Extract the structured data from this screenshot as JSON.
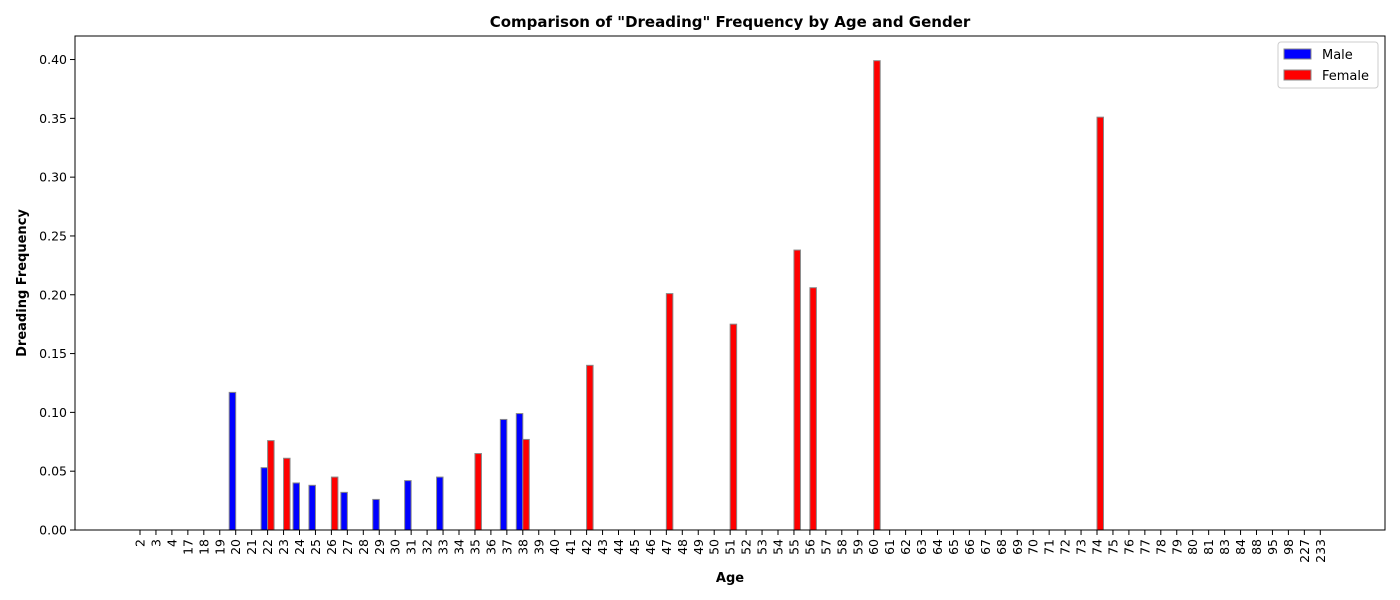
{
  "chart_data": {
    "type": "bar",
    "title": "Comparison of \"Dreading\" Frequency by Age and Gender",
    "xlabel": "Age",
    "ylabel": "Dreading Frequency",
    "ylim": [
      0,
      0.42
    ],
    "yticks": [
      "0.00",
      "0.05",
      "0.10",
      "0.15",
      "0.20",
      "0.25",
      "0.30",
      "0.35",
      "0.40"
    ],
    "legend_position": "top-right",
    "categories": [
      "2",
      "3",
      "4",
      "17",
      "18",
      "19",
      "20",
      "21",
      "22",
      "23",
      "24",
      "25",
      "26",
      "27",
      "28",
      "29",
      "30",
      "31",
      "32",
      "33",
      "34",
      "35",
      "36",
      "37",
      "38",
      "39",
      "40",
      "41",
      "42",
      "43",
      "44",
      "45",
      "46",
      "47",
      "48",
      "49",
      "50",
      "51",
      "52",
      "53",
      "54",
      "55",
      "56",
      "57",
      "58",
      "59",
      "60",
      "61",
      "62",
      "63",
      "64",
      "65",
      "66",
      "67",
      "68",
      "69",
      "70",
      "71",
      "72",
      "73",
      "74",
      "75",
      "76",
      "77",
      "78",
      "79",
      "80",
      "81",
      "83",
      "84",
      "88",
      "95",
      "98",
      "227",
      "233"
    ],
    "series": [
      {
        "name": "Male",
        "color": "#0000ff",
        "values": [
          0,
          0,
          0,
          0,
          0,
          0,
          0.117,
          0,
          0.053,
          0,
          0.04,
          0.038,
          0,
          0.032,
          0,
          0.026,
          0,
          0.042,
          0,
          0.045,
          0,
          0,
          0,
          0.094,
          0.099,
          0,
          0,
          0,
          0,
          0,
          0,
          0,
          0,
          0,
          0,
          0,
          0,
          0,
          0,
          0,
          0,
          0,
          0,
          0,
          0,
          0,
          0,
          0,
          0,
          0,
          0,
          0,
          0,
          0,
          0,
          0,
          0,
          0,
          0,
          0,
          0,
          0,
          0,
          0,
          0,
          0,
          0,
          0,
          0,
          0,
          0,
          0,
          0,
          0,
          0
        ]
      },
      {
        "name": "Female",
        "color": "#ff0000",
        "values": [
          0,
          0,
          0,
          0,
          0,
          0,
          0,
          0,
          0.076,
          0.061,
          0,
          0,
          0.045,
          0,
          0,
          0,
          0,
          0,
          0,
          0,
          0,
          0.065,
          0,
          0,
          0.077,
          0,
          0,
          0,
          0.14,
          0,
          0,
          0,
          0,
          0.201,
          0,
          0,
          0,
          0.175,
          0,
          0,
          0,
          0.238,
          0.206,
          0,
          0,
          0,
          0.399,
          0,
          0,
          0,
          0,
          0,
          0,
          0,
          0,
          0,
          0,
          0,
          0,
          0,
          0.351,
          0,
          0,
          0,
          0,
          0,
          0,
          0,
          0,
          0,
          0,
          0,
          0,
          0,
          0
        ]
      }
    ]
  }
}
